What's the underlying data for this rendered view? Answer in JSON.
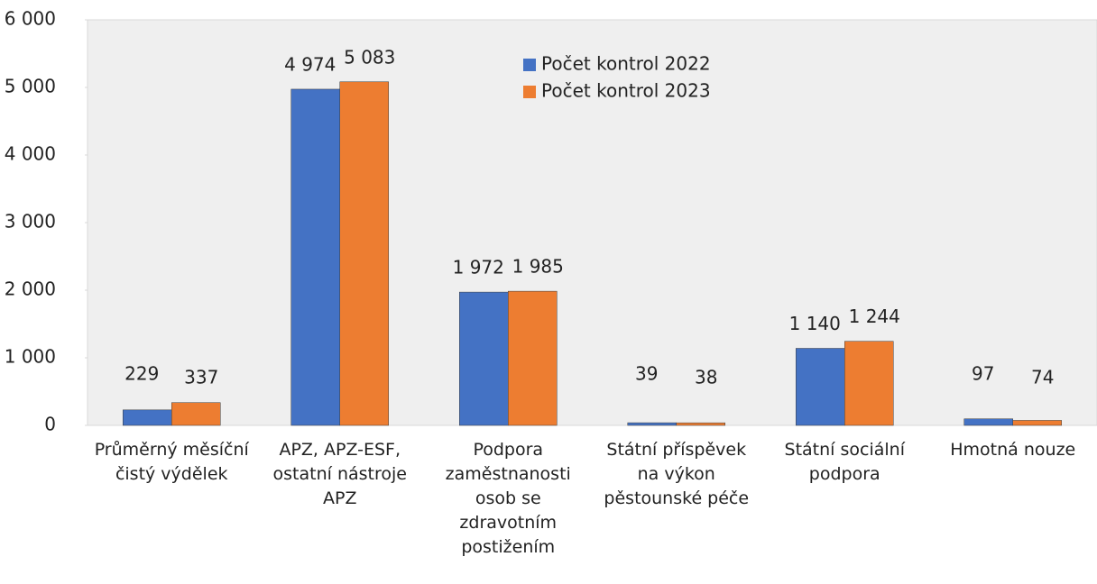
{
  "chart_data": {
    "type": "bar",
    "categories": [
      "Průměrný měsíční čistý výdělek",
      "APZ, APZ-ESF, ostatní nástroje APZ",
      "Podpora zaměstnanosti osob se zdravotním postižením",
      "Státní příspěvek na výkon pěstounské péče",
      "Státní sociální podpora",
      "Hmotná nouze"
    ],
    "series": [
      {
        "name": "Počet  kontrol 2022",
        "color": "#4472c4",
        "values": [
          229,
          4974,
          1972,
          39,
          1140,
          97
        ],
        "value_labels": [
          "229",
          "4 974",
          "1 972",
          "39",
          "1 140",
          "97"
        ]
      },
      {
        "name": "Počet kontrol 2023",
        "color": "#ed7d31",
        "values": [
          337,
          5083,
          1985,
          38,
          1244,
          74
        ],
        "value_labels": [
          "337",
          "5 083",
          "1 985",
          "38",
          "1 244",
          "74"
        ]
      }
    ],
    "ylim": [
      0,
      6000
    ],
    "yticks": [
      0,
      {
        "value": 1000,
        "label": "1 000"
      },
      {
        "value": 2000,
        "label": "2 000"
      },
      {
        "value": 3000,
        "label": "3 000"
      },
      {
        "value": 4000,
        "label": "4 000"
      },
      {
        "value": 5000,
        "label": "5 000"
      },
      {
        "value": 6000,
        "label": "6 000"
      }
    ],
    "legend": "top-center"
  }
}
